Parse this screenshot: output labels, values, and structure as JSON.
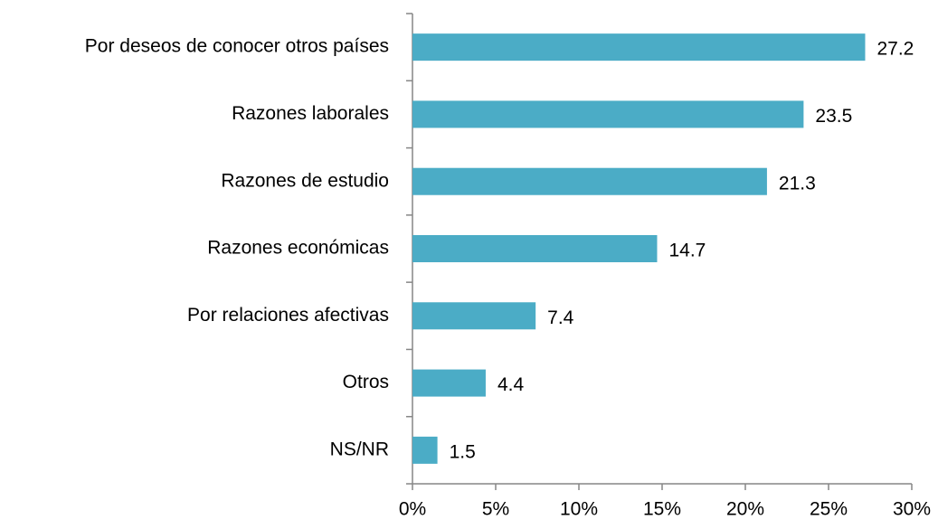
{
  "chart_data": {
    "type": "bar",
    "orientation": "horizontal",
    "categories": [
      "Por deseos de conocer otros países",
      "Razones laborales",
      "Razones de estudio",
      "Razones económicas",
      "Por relaciones afectivas",
      "Otros",
      "NS/NR"
    ],
    "values": [
      27.2,
      23.5,
      21.3,
      14.7,
      7.4,
      4.4,
      1.5
    ],
    "color": "#4bacc6",
    "xlim": [
      0,
      30
    ],
    "xticks": [
      {
        "value": 0,
        "label": "0%"
      },
      {
        "value": 5,
        "label": "5%"
      },
      {
        "value": 10,
        "label": "10%"
      },
      {
        "value": 15,
        "label": "15%"
      },
      {
        "value": 20,
        "label": "20%"
      },
      {
        "value": 25,
        "label": "25%"
      },
      {
        "value": 30,
        "label": "30%"
      }
    ],
    "grid": false
  }
}
